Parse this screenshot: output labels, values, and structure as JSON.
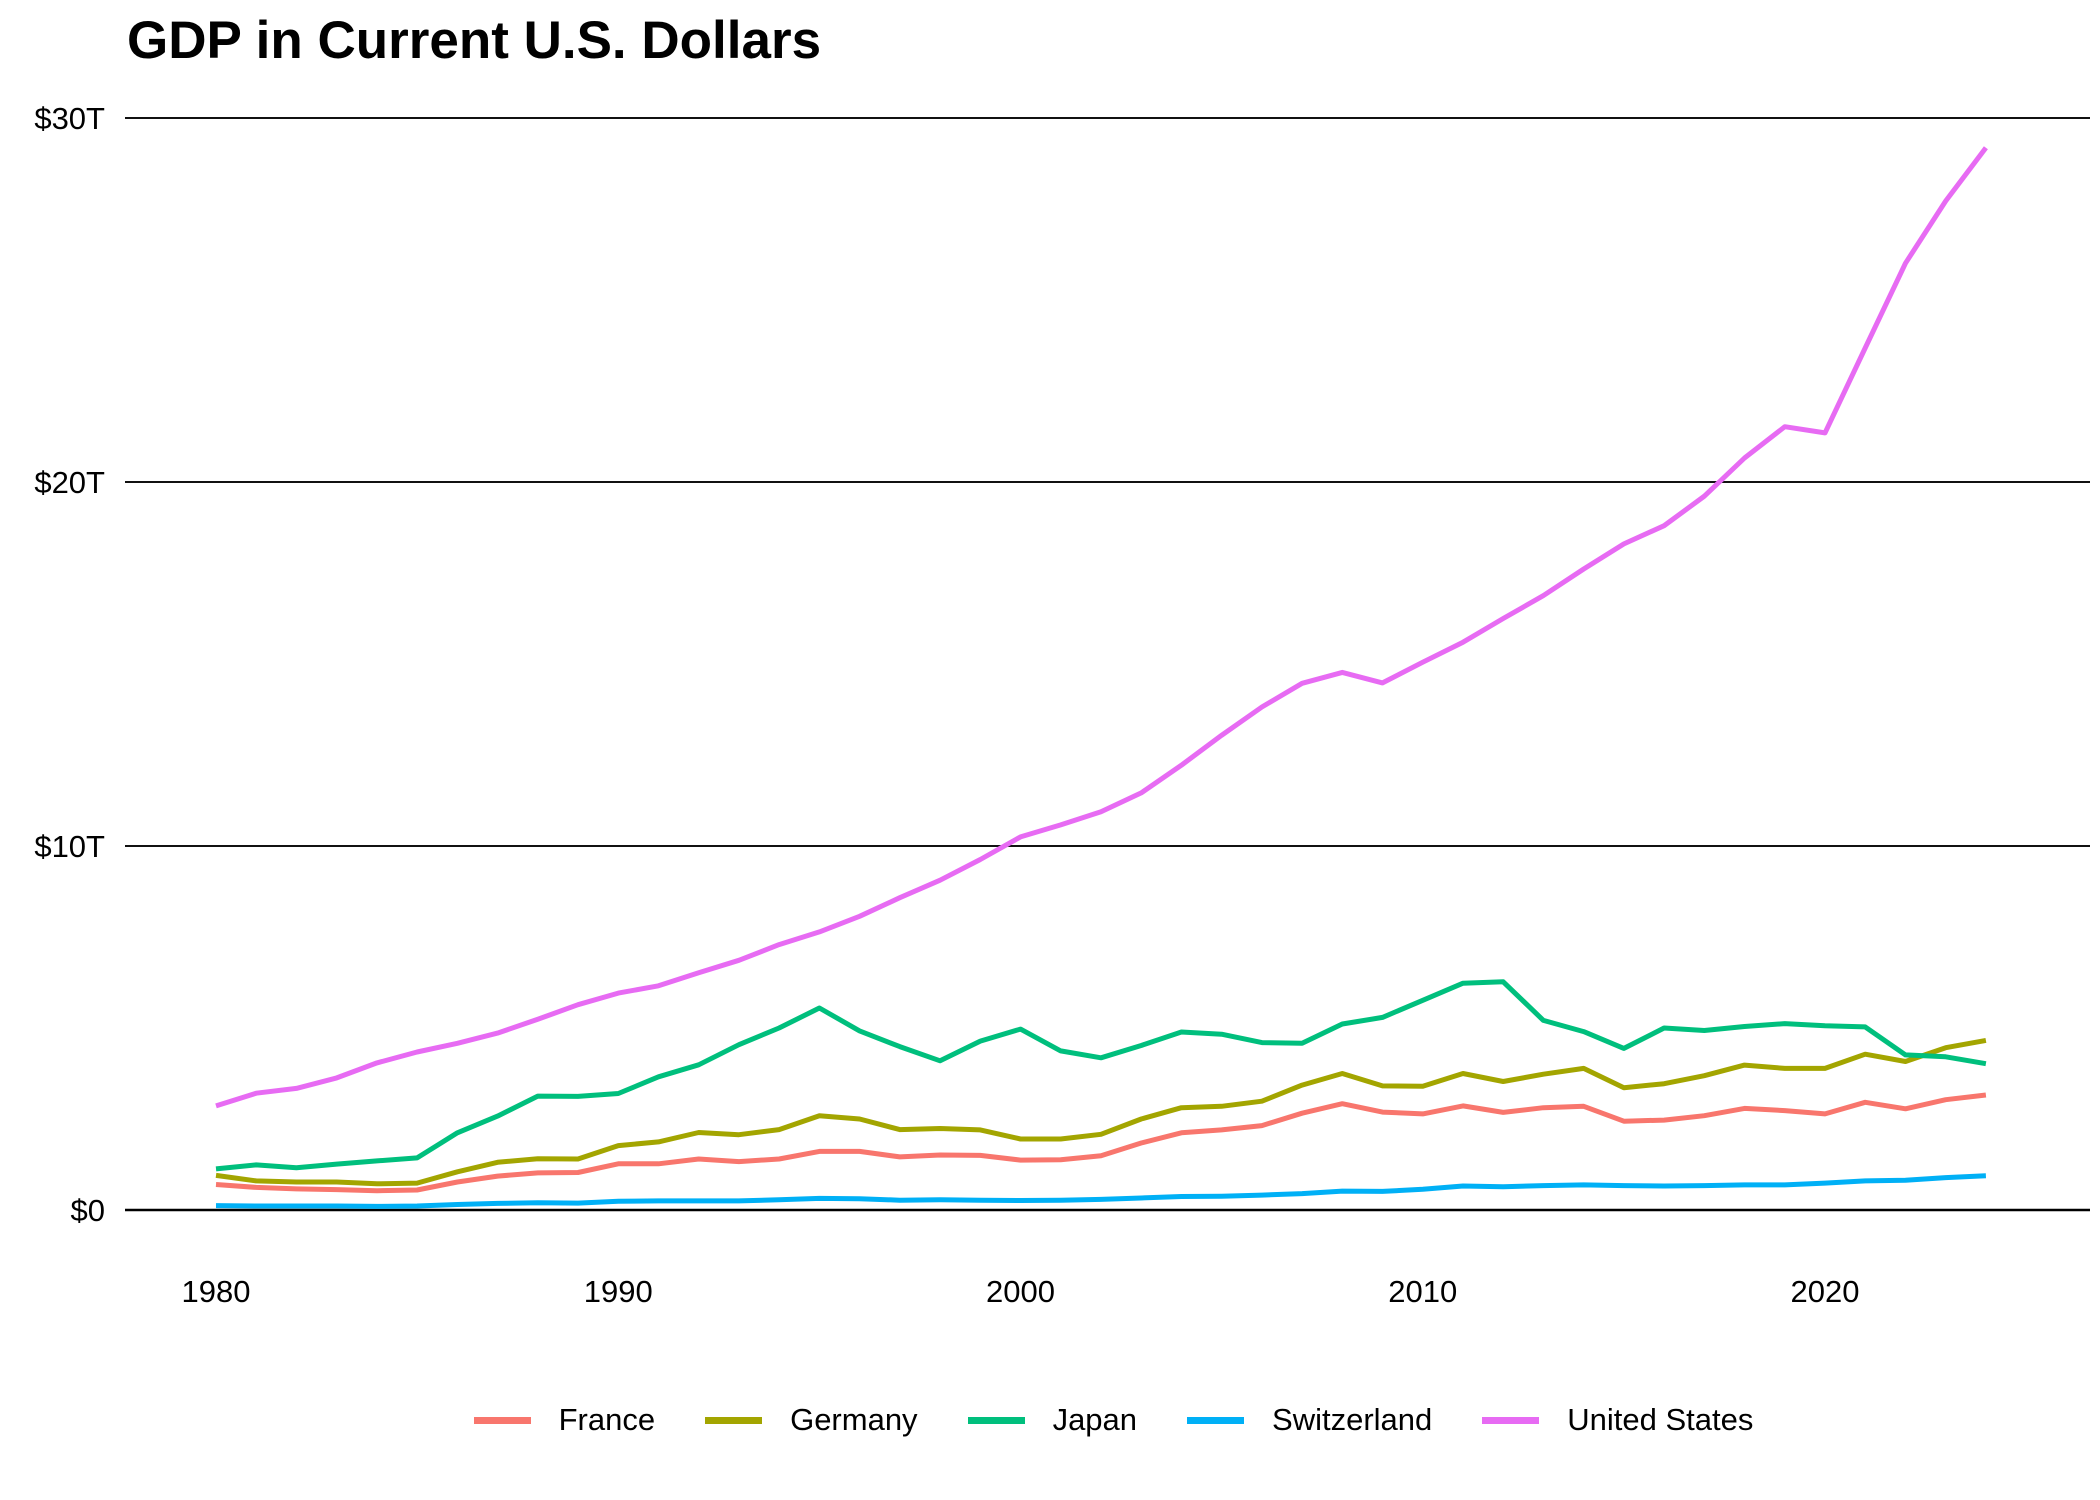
{
  "title": "GDP in Current U.S. Dollars",
  "chart_data": {
    "type": "line",
    "title": "GDP in Current U.S. Dollars",
    "xlabel": "",
    "ylabel": "",
    "units": "trillions of current U.S. dollars",
    "x_range": [
      1980,
      2024
    ],
    "ylim": [
      0,
      30
    ],
    "grid": "horizontal",
    "legend_position": "bottom",
    "x_ticks": [
      {
        "label": "1980",
        "year": 1980
      },
      {
        "label": "1990",
        "year": 1990
      },
      {
        "label": "2000",
        "year": 2000
      },
      {
        "label": "2010",
        "year": 2010
      },
      {
        "label": "2020",
        "year": 2020
      }
    ],
    "y_ticks": [
      {
        "label": "$0",
        "value": 0
      },
      {
        "label": "$10T",
        "value": 10
      },
      {
        "label": "$20T",
        "value": 20
      },
      {
        "label": "$30T",
        "value": 30
      }
    ],
    "years": [
      1980,
      1981,
      1982,
      1983,
      1984,
      1985,
      1986,
      1987,
      1988,
      1989,
      1990,
      1991,
      1992,
      1993,
      1994,
      1995,
      1996,
      1997,
      1998,
      1999,
      2000,
      2001,
      2002,
      2003,
      2004,
      2005,
      2006,
      2007,
      2008,
      2009,
      2010,
      2011,
      2012,
      2013,
      2014,
      2015,
      2016,
      2017,
      2018,
      2019,
      2020,
      2021,
      2022,
      2023,
      2024
    ],
    "series": [
      {
        "name": "France",
        "color": "#F8766D",
        "values": [
          0.7,
          0.62,
          0.58,
          0.56,
          0.53,
          0.55,
          0.77,
          0.93,
          1.02,
          1.03,
          1.27,
          1.27,
          1.4,
          1.33,
          1.4,
          1.61,
          1.61,
          1.46,
          1.51,
          1.5,
          1.37,
          1.38,
          1.49,
          1.84,
          2.12,
          2.2,
          2.32,
          2.66,
          2.92,
          2.69,
          2.64,
          2.86,
          2.68,
          2.81,
          2.85,
          2.44,
          2.47,
          2.59,
          2.79,
          2.73,
          2.64,
          2.96,
          2.78,
          3.03,
          3.16
        ]
      },
      {
        "name": "Germany",
        "color": "#A3A500",
        "values": [
          0.95,
          0.8,
          0.77,
          0.77,
          0.72,
          0.74,
          1.05,
          1.31,
          1.41,
          1.4,
          1.77,
          1.87,
          2.13,
          2.07,
          2.21,
          2.59,
          2.5,
          2.21,
          2.24,
          2.2,
          1.95,
          1.95,
          2.08,
          2.5,
          2.81,
          2.85,
          2.99,
          3.43,
          3.75,
          3.41,
          3.4,
          3.75,
          3.53,
          3.73,
          3.89,
          3.36,
          3.47,
          3.69,
          3.98,
          3.89,
          3.89,
          4.28,
          4.08,
          4.46,
          4.66
        ]
      },
      {
        "name": "Japan",
        "color": "#00BF7D",
        "values": [
          1.13,
          1.24,
          1.16,
          1.26,
          1.35,
          1.43,
          2.12,
          2.58,
          3.13,
          3.12,
          3.2,
          3.66,
          3.99,
          4.54,
          5.0,
          5.55,
          4.92,
          4.49,
          4.1,
          4.64,
          4.97,
          4.37,
          4.18,
          4.52,
          4.89,
          4.83,
          4.6,
          4.58,
          5.11,
          5.29,
          5.76,
          6.23,
          6.27,
          5.21,
          4.9,
          4.44,
          5.0,
          4.93,
          5.04,
          5.12,
          5.06,
          5.03,
          4.26,
          4.21,
          4.02
        ]
      },
      {
        "name": "Switzerland",
        "color": "#00B0F6",
        "values": [
          0.12,
          0.11,
          0.11,
          0.11,
          0.1,
          0.11,
          0.15,
          0.18,
          0.2,
          0.19,
          0.24,
          0.25,
          0.25,
          0.25,
          0.28,
          0.32,
          0.31,
          0.27,
          0.28,
          0.27,
          0.26,
          0.27,
          0.29,
          0.33,
          0.37,
          0.38,
          0.41,
          0.45,
          0.52,
          0.51,
          0.57,
          0.66,
          0.64,
          0.67,
          0.69,
          0.67,
          0.66,
          0.67,
          0.69,
          0.69,
          0.74,
          0.8,
          0.82,
          0.89,
          0.94
        ]
      },
      {
        "name": "United States",
        "color": "#E76BF3",
        "values": [
          2.86,
          3.21,
          3.34,
          3.63,
          4.04,
          4.34,
          4.58,
          4.86,
          5.24,
          5.64,
          5.96,
          6.16,
          6.52,
          6.86,
          7.29,
          7.64,
          8.07,
          8.58,
          9.06,
          9.63,
          10.25,
          10.58,
          10.94,
          11.46,
          12.22,
          13.04,
          13.82,
          14.47,
          14.77,
          14.48,
          15.05,
          15.6,
          16.25,
          16.88,
          17.61,
          18.3,
          18.8,
          19.61,
          20.66,
          21.52,
          21.35,
          23.68,
          26.01,
          27.72,
          29.18
        ]
      }
    ]
  }
}
